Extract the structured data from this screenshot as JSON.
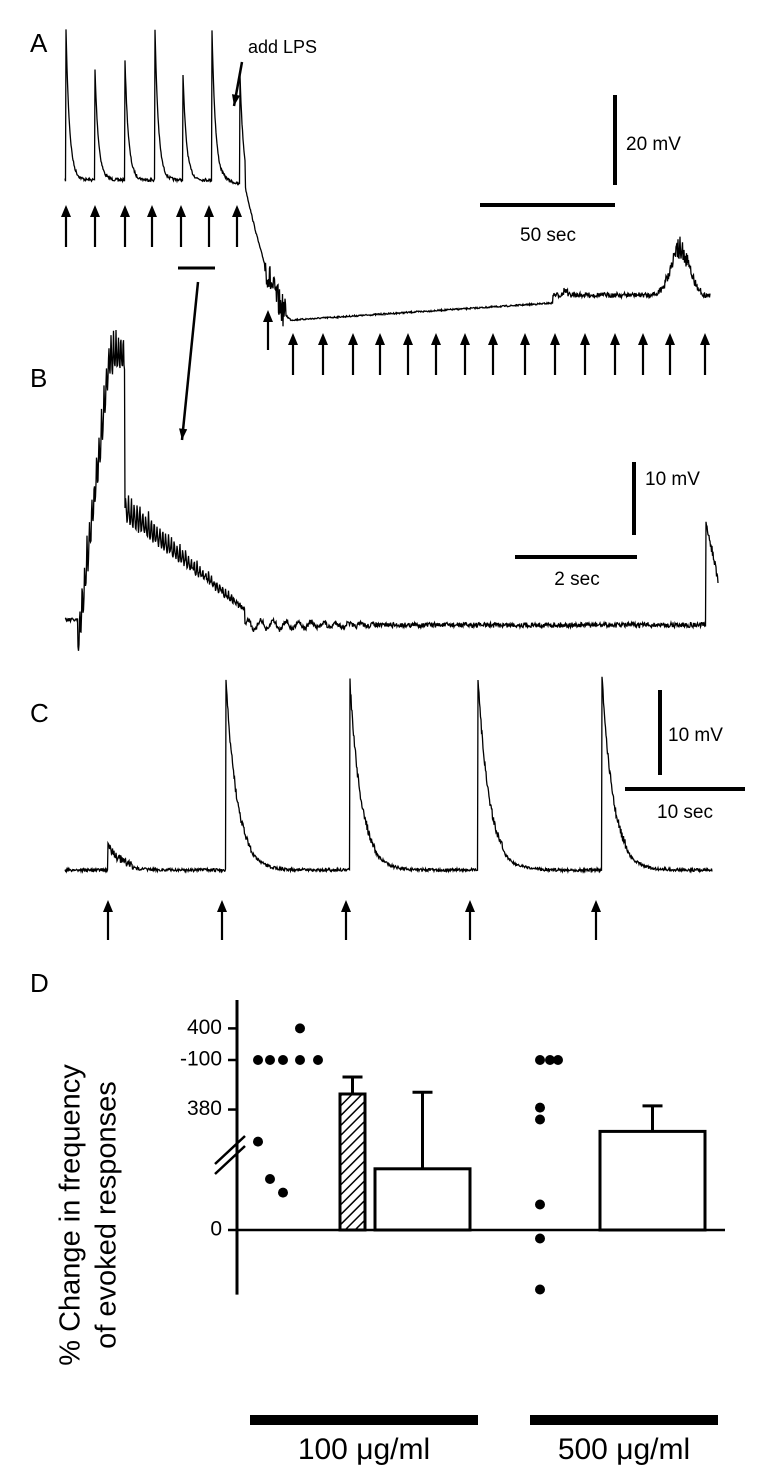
{
  "panels": [
    {
      "label": "A",
      "annotation": "add LPS",
      "voltage_scale": "20 mV",
      "time_scale": "50 sec"
    },
    {
      "label": "B",
      "voltage_scale": "10 mV",
      "time_scale": "2 sec"
    },
    {
      "label": "C",
      "voltage_scale": "10 mV",
      "time_scale": "10 sec"
    }
  ],
  "chart_data": {
    "type": "dot-bar",
    "label": "D",
    "y_label": [
      "% Change in frequency",
      "of evoked responses"
    ],
    "ylim": [
      -105,
      38
    ],
    "yticks": [
      -100,
      0
    ],
    "ylim_upper": [
      372,
      407
    ],
    "yticks_upper": [
      380,
      400
    ],
    "groups": [
      {
        "label": "100 μg/ml",
        "points": [
          -100,
          -100,
          -100,
          -52,
          -30,
          -22,
          400,
          -100,
          -100
        ],
        "bars": [
          {
            "value": -80,
            "error": 10,
            "pattern": "hatched"
          },
          {
            "value": -36,
            "error": 45,
            "pattern": "open"
          }
        ]
      },
      {
        "label": "500 μg/ml",
        "points": [
          35,
          5,
          -15,
          -65,
          -72,
          -100,
          -100,
          -100
        ],
        "bars": [
          {
            "value": -58,
            "error": 15,
            "pattern": "open"
          }
        ]
      }
    ]
  }
}
